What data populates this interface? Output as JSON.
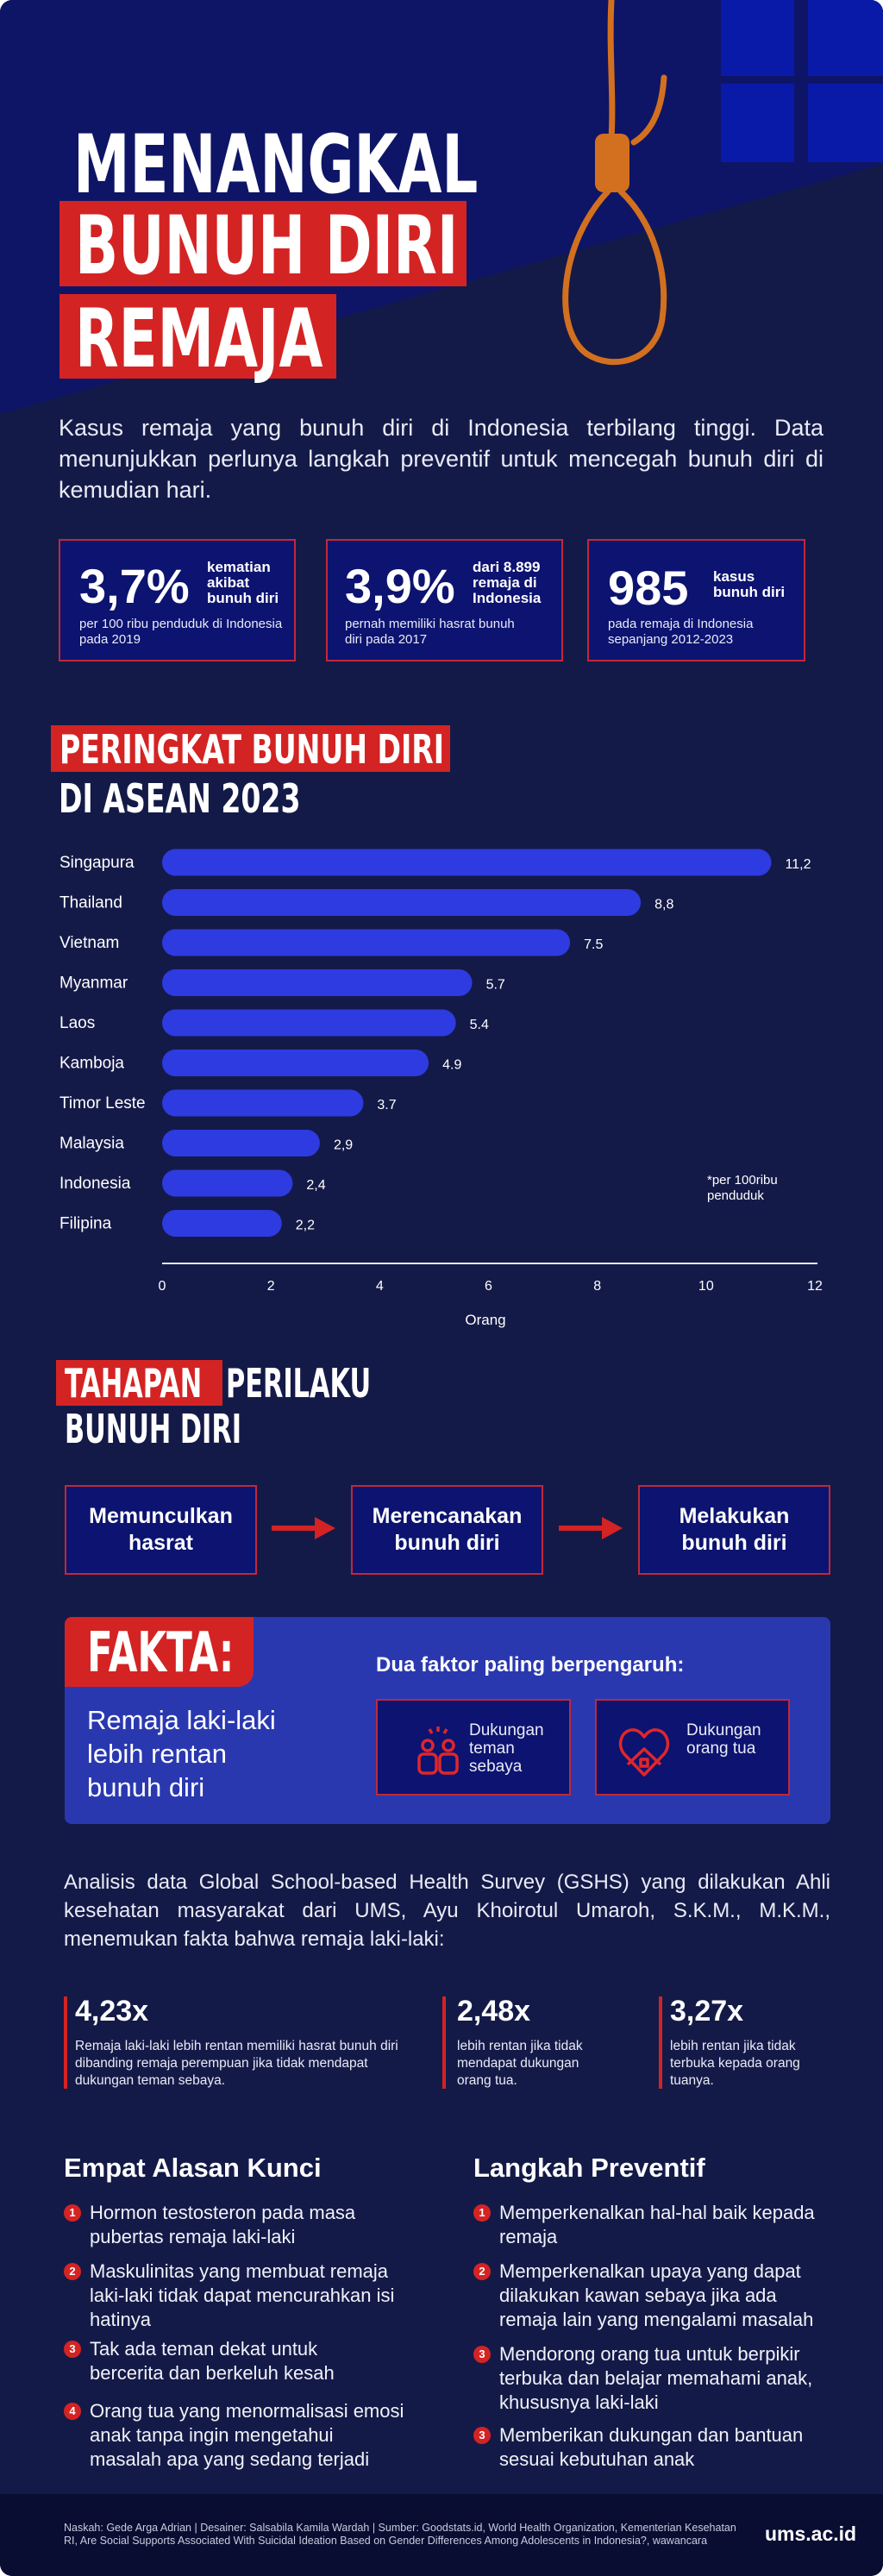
{
  "header": {
    "title_line1": "MENANGKAL",
    "title_line2": "BUNUH DIRI",
    "title_line3": "REMAJA"
  },
  "intro": "Kasus remaja yang bunuh diri di Indonesia terbilang tinggi. Data menunjukkan perlunya langkah preventif untuk mencegah bunuh diri di kemudian hari.",
  "stats": [
    {
      "value": "3,7%",
      "label": "kematian akibat bunuh diri",
      "desc": "per 100 ribu penduduk di Indonesia pada 2019"
    },
    {
      "value": "3,9%",
      "label": "dari 8.899 remaja di Indonesia",
      "desc": "pernah memiliki hasrat bunuh diri pada 2017"
    },
    {
      "value": "985",
      "label": "kasus bunuh diri",
      "desc": "pada remaja di Indonesia sepanjang 2012-2023"
    }
  ],
  "chart_section": {
    "title_highlight": "PERINGKAT BUNUH DIRI",
    "title_rest": "DI ASEAN 2023"
  },
  "chart_data": {
    "type": "bar",
    "orientation": "horizontal",
    "categories": [
      "Singapura",
      "Thailand",
      "Vietnam",
      "Myanmar",
      "Laos",
      "Kamboja",
      "Timor Leste",
      "Malaysia",
      "Indonesia",
      "Filipina"
    ],
    "values": [
      11.2,
      8.8,
      7.5,
      5.7,
      5.4,
      4.9,
      3.7,
      2.9,
      2.4,
      2.2
    ],
    "value_labels": [
      "11,2",
      "8,8",
      "7.5",
      "5.7",
      "5.4",
      "4.9",
      "3.7",
      "2,9",
      "2,4",
      "2,2"
    ],
    "xlabel": "Orang",
    "xlim": [
      0,
      12
    ],
    "xticks": [
      "0",
      "2",
      "4",
      "6",
      "8",
      "10",
      "12"
    ],
    "note": "*per 100ribu penduduk",
    "bar_color": "#2e3be0",
    "grid": false
  },
  "stages": {
    "title_highlight": "TAHAPAN",
    "title_rest1": "PERILAKU",
    "title_rest2": "BUNUH DIRI",
    "steps": [
      "Memunculkan hasrat",
      "Merencanakan bunuh diri",
      "Melakukan bunuh diri"
    ]
  },
  "fakta": {
    "label": "FAKTA:",
    "statement": "Remaja laki-laki lebih rentan bunuh diri",
    "factors_title": "Dua faktor paling berpengaruh:",
    "factors": [
      {
        "icon": "friends-icon",
        "label": "Dukungan teman sebaya"
      },
      {
        "icon": "heart-home-icon",
        "label": "Dukungan orang tua"
      }
    ]
  },
  "analysis": "Analisis data Global School-based Health Survey (GSHS) yang dilakukan Ahli kesehatan masyarakat dari UMS, Ayu Khoirotul Umaroh, S.K.M., M.K.M., menemukan fakta bahwa remaja laki-laki:",
  "multipliers": [
    {
      "value": "4,23x",
      "desc": "Remaja laki-laki lebih rentan memiliki hasrat bunuh diri dibanding remaja perempuan jika tidak mendapat dukungan teman sebaya."
    },
    {
      "value": "2,48x",
      "desc": "lebih rentan jika tidak mendapat dukungan orang tua."
    },
    {
      "value": "3,27x",
      "desc": "lebih rentan jika tidak terbuka kepada orang tuanya."
    }
  ],
  "reasons": {
    "title": "Empat Alasan Kunci",
    "items": [
      {
        "n": "1",
        "text": "Hormon testosteron pada masa pubertas remaja laki-laki"
      },
      {
        "n": "2",
        "text": "Maskulinitas yang membuat remaja laki-laki tidak dapat mencurahkan isi hatinya"
      },
      {
        "n": "3",
        "text": "Tak ada teman dekat untuk bercerita dan berkeluh kesah"
      },
      {
        "n": "4",
        "text": "Orang tua yang menormalisasi emosi anak tanpa ingin mengetahui masalah apa yang sedang terjadi"
      }
    ]
  },
  "prevention": {
    "title": "Langkah Preventif",
    "items": [
      {
        "n": "1",
        "text": "Memperkenalkan hal-hal baik kepada remaja"
      },
      {
        "n": "2",
        "text": "Memperkenalkan upaya yang dapat dilakukan kawan sebaya jika ada remaja lain yang mengalami masalah"
      },
      {
        "n": "3",
        "text": "Mendorong orang tua untuk berpikir terbuka dan belajar memahami anak, khususnya laki-laki"
      },
      {
        "n": "3",
        "text": "Memberikan dukungan dan bantuan sesuai kebutuhan anak"
      }
    ]
  },
  "footer": {
    "credits": "Naskah: Gede Arga Adrian | Desainer: Salsabila Kamila Wardah | Sumber: Goodstats.id, World Health Organization, Kementerian Kesehatan RI, Are Social Supports Associated With Suicidal Ideation Based on Gender Differences Among Adolescents in Indonesia?, wawancara",
    "site": "ums.ac.id"
  },
  "colors": {
    "background": "#141a48",
    "accent_red": "#d42323",
    "bar_blue": "#2e3be0",
    "rope": "#d2701f"
  }
}
